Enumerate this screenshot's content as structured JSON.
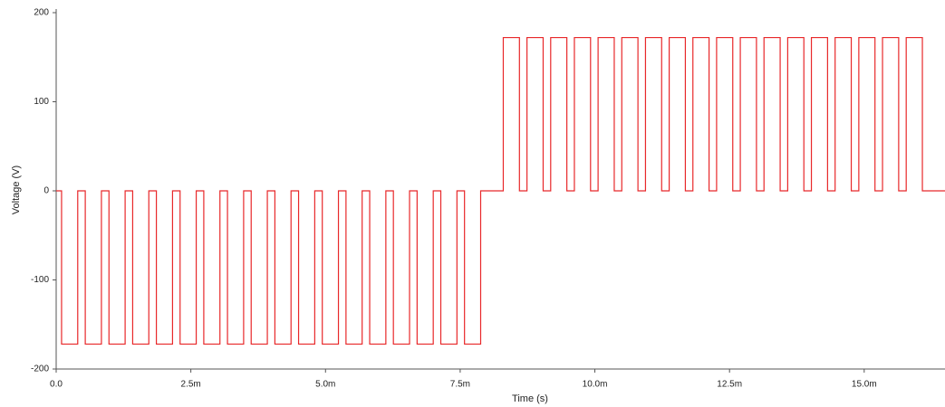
{
  "chart_data": {
    "type": "line",
    "xlabel": "Time (s)",
    "ylabel": "Voltage (V)",
    "color": "#e8282a",
    "xlim": [
      0,
      0.0165
    ],
    "ylim": [
      -200,
      200
    ],
    "xticks": [
      {
        "value": 0,
        "label": "0.0"
      },
      {
        "value": 0.0025,
        "label": "2.5m"
      },
      {
        "value": 0.005,
        "label": "5.0m"
      },
      {
        "value": 0.0075,
        "label": "7.5m"
      },
      {
        "value": 0.01,
        "label": "10.0m"
      },
      {
        "value": 0.0125,
        "label": "12.5m"
      },
      {
        "value": 0.015,
        "label": "15.0m"
      }
    ],
    "yticks": [
      200,
      100,
      0,
      -100,
      -200
    ],
    "x": [
      0,
      0.0001,
      0.0001,
      0.0004,
      0.0004,
      0.00054,
      0.00054,
      0.00084,
      0.00084,
      0.00098,
      0.00098,
      0.00128,
      0.00128,
      0.00142,
      0.00142,
      0.00172,
      0.00172,
      0.00186,
      0.00186,
      0.00216,
      0.00216,
      0.0023,
      0.0023,
      0.0026,
      0.0026,
      0.00274,
      0.00274,
      0.00304,
      0.00304,
      0.00318,
      0.00318,
      0.00348,
      0.00348,
      0.00362,
      0.00362,
      0.00392,
      0.00392,
      0.00406,
      0.00406,
      0.00436,
      0.00436,
      0.0045,
      0.0045,
      0.0048,
      0.0048,
      0.00494,
      0.00494,
      0.00524,
      0.00524,
      0.00538,
      0.00538,
      0.00568,
      0.00568,
      0.00582,
      0.00582,
      0.00612,
      0.00612,
      0.00626,
      0.00626,
      0.00656,
      0.00656,
      0.0067,
      0.0067,
      0.007,
      0.007,
      0.00714,
      0.00714,
      0.00744,
      0.00744,
      0.00758,
      0.00758,
      0.00788,
      0.00788,
      0.0083,
      0.0083,
      0.0086,
      0.0086,
      0.00874,
      0.00874,
      0.00904,
      0.00904,
      0.00918,
      0.00918,
      0.00948,
      0.00948,
      0.00962,
      0.00962,
      0.00992,
      0.00992,
      0.01006,
      0.01006,
      0.01036,
      0.01036,
      0.0105,
      0.0105,
      0.0108,
      0.0108,
      0.01094,
      0.01094,
      0.01124,
      0.01124,
      0.01138,
      0.01138,
      0.01168,
      0.01168,
      0.01182,
      0.01182,
      0.01212,
      0.01212,
      0.01226,
      0.01226,
      0.01256,
      0.01256,
      0.0127,
      0.0127,
      0.013,
      0.013,
      0.01314,
      0.01314,
      0.01344,
      0.01344,
      0.01358,
      0.01358,
      0.01388,
      0.01388,
      0.01402,
      0.01402,
      0.01432,
      0.01432,
      0.01446,
      0.01446,
      0.01476,
      0.01476,
      0.0149,
      0.0149,
      0.0152,
      0.0152,
      0.01534,
      0.01534,
      0.01564,
      0.01564,
      0.01578,
      0.01578,
      0.01608,
      0.01608,
      0.0165
    ],
    "values": [
      0,
      0,
      -172,
      -172,
      0,
      0,
      -172,
      -172,
      0,
      0,
      -172,
      -172,
      0,
      0,
      -172,
      -172,
      0,
      0,
      -172,
      -172,
      0,
      0,
      -172,
      -172,
      0,
      0,
      -172,
      -172,
      0,
      0,
      -172,
      -172,
      0,
      0,
      -172,
      -172,
      0,
      0,
      -172,
      -172,
      0,
      0,
      -172,
      -172,
      0,
      0,
      -172,
      -172,
      0,
      0,
      -172,
      -172,
      0,
      0,
      -172,
      -172,
      0,
      0,
      -172,
      -172,
      0,
      0,
      -172,
      -172,
      0,
      0,
      -172,
      -172,
      0,
      0,
      -172,
      -172,
      0,
      0,
      172,
      172,
      0,
      0,
      172,
      172,
      0,
      0,
      172,
      172,
      0,
      0,
      172,
      172,
      0,
      0,
      172,
      172,
      0,
      0,
      172,
      172,
      0,
      0,
      172,
      172,
      0,
      0,
      172,
      172,
      0,
      0,
      172,
      172,
      0,
      0,
      172,
      172,
      0,
      0,
      172,
      172,
      0,
      0,
      172,
      172,
      0,
      0,
      172,
      172,
      0,
      0,
      172,
      172,
      0,
      0,
      172,
      172,
      0,
      0,
      172,
      172,
      0,
      0,
      172,
      172,
      0,
      0,
      172,
      172,
      0,
      0
    ]
  }
}
